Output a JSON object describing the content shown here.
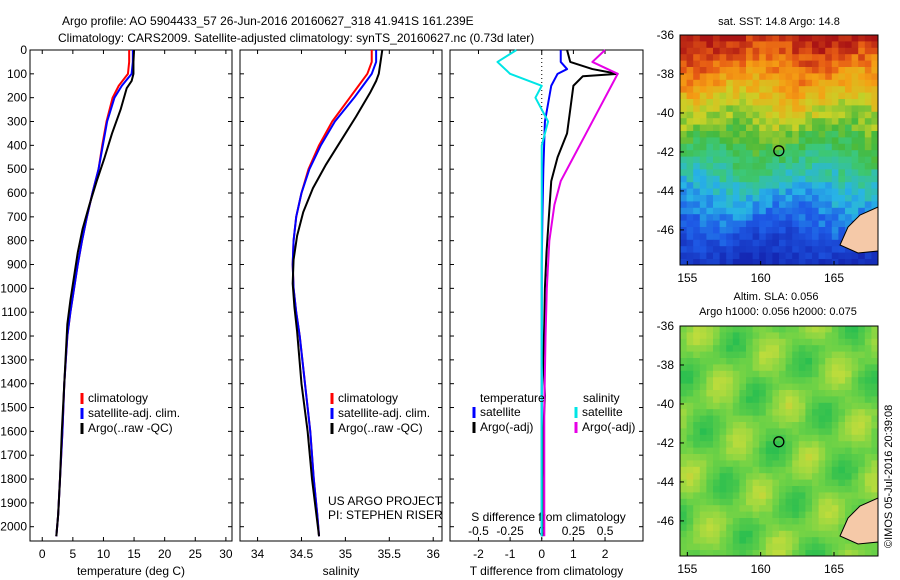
{
  "header": {
    "line1": "Argo profile: AO 5904433_57 26-Jun-2016 20160627_318 41.941S 161.239E",
    "line2": "Climatology: CARS2009. Satellite-adjusted climatology: synTS_20160627.nc (0.73d later)"
  },
  "colors": {
    "climatology": "#ff0000",
    "satellite": "#0000ff",
    "argo": "#000000",
    "salinity_satellite": "#00e5e5",
    "salinity_argo": "#e600e6"
  },
  "chart_data": [
    {
      "type": "line",
      "panel": "temperature",
      "xlabel": "temperature (deg C)",
      "xlim": [
        -2,
        31
      ],
      "xticks": [
        0,
        5,
        10,
        15,
        20,
        25,
        30
      ],
      "ylim": [
        2060,
        0
      ],
      "yticks": [
        0,
        100,
        200,
        300,
        400,
        500,
        600,
        700,
        800,
        900,
        1000,
        1100,
        1200,
        1300,
        1400,
        1500,
        1600,
        1700,
        1800,
        1900,
        2000
      ],
      "legend": [
        "climatology",
        "satellite-adj. clim.",
        "Argo(..raw -QC)"
      ],
      "series": [
        {
          "name": "climatology",
          "x": [
            14.2,
            14.2,
            14.0,
            12.5,
            11.5,
            10.5,
            9.8,
            9.2,
            8.2,
            7.3,
            6.5,
            5.8,
            5.2,
            4.6,
            4.1,
            3.6,
            3.3,
            2.9,
            2.6,
            2.3
          ],
          "y": [
            0,
            50,
            100,
            150,
            200,
            300,
            400,
            500,
            600,
            700,
            800,
            900,
            1000,
            1100,
            1200,
            1400,
            1600,
            1800,
            1950,
            2040
          ]
        },
        {
          "name": "satellite-adj. clim.",
          "x": [
            14.8,
            14.8,
            14.6,
            13.0,
            11.8,
            10.6,
            9.9,
            9.2,
            8.2,
            7.3,
            6.5,
            5.8,
            5.2,
            4.6,
            4.1,
            3.6,
            3.3,
            2.9,
            2.6,
            2.3
          ],
          "y": [
            0,
            50,
            100,
            150,
            200,
            300,
            400,
            500,
            600,
            700,
            800,
            900,
            1000,
            1100,
            1200,
            1400,
            1600,
            1800,
            1950,
            2040
          ]
        },
        {
          "name": "Argo(..raw -QC)",
          "x": [
            15.0,
            14.9,
            14.9,
            14.6,
            13.8,
            12.8,
            11.4,
            10.2,
            8.9,
            7.7,
            6.6,
            5.8,
            5.2,
            4.6,
            4.1,
            3.6,
            3.2,
            2.9,
            2.6,
            2.3
          ],
          "y": [
            0,
            50,
            100,
            130,
            160,
            250,
            350,
            450,
            550,
            650,
            750,
            850,
            950,
            1050,
            1150,
            1400,
            1600,
            1800,
            1950,
            2040
          ]
        }
      ]
    },
    {
      "type": "line",
      "panel": "salinity",
      "xlabel": "salinity",
      "xlim": [
        33.8,
        36.1
      ],
      "xticks": [
        34,
        34.5,
        35,
        35.5,
        36
      ],
      "xtick_labels": [
        "34",
        "34.5",
        "35",
        "35.5",
        "36"
      ],
      "ylim": [
        2060,
        0
      ],
      "legend": [
        "climatology",
        "satellite-adj. clim.",
        "Argo(..raw -QC)"
      ],
      "annotation": [
        "US ARGO PROJECT",
        "PI: STEPHEN RISER"
      ],
      "series": [
        {
          "name": "climatology",
          "x": [
            35.3,
            35.3,
            35.25,
            35.15,
            35.05,
            34.85,
            34.7,
            34.58,
            34.5,
            34.44,
            34.41,
            34.4,
            34.41,
            34.44,
            34.48,
            34.54,
            34.6,
            34.64,
            34.68,
            34.7
          ],
          "y": [
            0,
            50,
            100,
            150,
            200,
            300,
            400,
            500,
            600,
            700,
            800,
            900,
            1000,
            1100,
            1200,
            1400,
            1600,
            1800,
            1950,
            2040
          ]
        },
        {
          "name": "satellite-adj. clim.",
          "x": [
            35.35,
            35.35,
            35.3,
            35.2,
            35.1,
            34.88,
            34.72,
            34.59,
            34.5,
            34.44,
            34.41,
            34.4,
            34.41,
            34.44,
            34.48,
            34.54,
            34.6,
            34.64,
            34.68,
            34.7
          ],
          "y": [
            0,
            50,
            100,
            150,
            200,
            300,
            400,
            500,
            600,
            700,
            800,
            900,
            1000,
            1100,
            1200,
            1400,
            1600,
            1800,
            1950,
            2040
          ]
        },
        {
          "name": "Argo(..raw -QC)",
          "x": [
            35.42,
            35.4,
            35.38,
            35.35,
            35.28,
            35.12,
            34.95,
            34.78,
            34.63,
            34.52,
            34.45,
            34.41,
            34.4,
            34.42,
            34.45,
            34.5,
            34.57,
            34.62,
            34.67,
            34.7
          ],
          "y": [
            0,
            50,
            100,
            130,
            180,
            280,
            380,
            480,
            580,
            680,
            780,
            880,
            980,
            1080,
            1180,
            1400,
            1600,
            1800,
            1950,
            2040
          ]
        }
      ]
    },
    {
      "type": "line",
      "panel": "difference",
      "xlabel": "T difference from climatology",
      "xlabel_top": "S difference from climatology",
      "xlim": [
        -2.9,
        3.2
      ],
      "xticks": [
        -2,
        -1,
        0,
        1,
        2
      ],
      "s_ticks": [
        -0.5,
        -0.25,
        0,
        0.25,
        0.5
      ],
      "s_tick_labels": [
        "-0.5",
        "-0.25",
        "0",
        "0.25",
        "0.5"
      ],
      "ylim": [
        2060,
        0
      ],
      "legend_titles": [
        "temperature",
        "salinity"
      ],
      "legend": [
        "satellite",
        "Argo(-adj)",
        "satellite",
        "Argo(-adj)"
      ],
      "series": [
        {
          "name": "satellite",
          "group": "temperature",
          "x": [
            0.6,
            0.6,
            0.8,
            0.5,
            0.3,
            0.1,
            0.05,
            0.02,
            0,
            0,
            0,
            0,
            0,
            0,
            0,
            0,
            0,
            0
          ],
          "y": [
            0,
            50,
            80,
            100,
            150,
            300,
            500,
            700,
            900,
            1000,
            1200,
            1400,
            1500,
            1600,
            1700,
            1800,
            1950,
            2040
          ]
        },
        {
          "name": "Argo(-adj)",
          "group": "temperature",
          "x": [
            0.8,
            0.9,
            1.6,
            2.4,
            1.3,
            1.0,
            0.9,
            0.8,
            0.5,
            0.3,
            0.25,
            0.2,
            0.15,
            0.1,
            0.08,
            0.05,
            0.1,
            0.05,
            0.02,
            0.02
          ],
          "y": [
            0,
            50,
            80,
            100,
            110,
            150,
            250,
            350,
            450,
            550,
            650,
            750,
            850,
            1000,
            1150,
            1300,
            1450,
            1600,
            1800,
            2040
          ]
        },
        {
          "name": "satellite",
          "group": "salinity",
          "x": [
            -0.2,
            -0.35,
            -0.25,
            0.0,
            -0.05,
            0.05,
            0.0,
            0.0,
            0.0,
            0.0,
            0.0,
            0.0,
            0.0,
            0.0,
            0.0
          ],
          "y": [
            0,
            50,
            100,
            150,
            200,
            300,
            400,
            500,
            600,
            800,
            1000,
            1300,
            1600,
            1800,
            2040
          ]
        },
        {
          "name": "Argo(-adj)",
          "group": "salinity",
          "x": [
            0.5,
            0.4,
            0.6,
            0.55,
            0.45,
            0.35,
            0.25,
            0.15,
            0.1,
            0.06,
            0.04,
            0.03,
            0.02,
            0.02,
            0.02
          ],
          "y": [
            0,
            50,
            100,
            150,
            250,
            350,
            450,
            550,
            650,
            800,
            1000,
            1200,
            1500,
            1800,
            2040
          ]
        }
      ]
    },
    {
      "type": "heatmap",
      "panel": "sst_map",
      "title": "sat. SST: 14.8  Argo: 14.8",
      "xlim": [
        154.5,
        168
      ],
      "ylim": [
        -47.8,
        -36
      ],
      "xticks": [
        155,
        160,
        165
      ],
      "yticks": [
        -36,
        -38,
        -40,
        -42,
        -44,
        -46
      ],
      "marker": {
        "lon": 161.239,
        "lat": -41.941
      }
    },
    {
      "type": "heatmap",
      "panel": "sla_map",
      "title": "Altim. SLA: 0.056",
      "subtitle": "Argo h1000: 0.056 h2000: 0.075",
      "xlim": [
        154.5,
        168
      ],
      "ylim": [
        -47.8,
        -36
      ],
      "xticks": [
        155,
        160,
        165
      ],
      "yticks": [
        -36,
        -38,
        -40,
        -42,
        -44,
        -46
      ],
      "marker": {
        "lon": 161.239,
        "lat": -41.941
      }
    }
  ],
  "stamp": "©IMOS 05-Jul-2016 20:39:08"
}
